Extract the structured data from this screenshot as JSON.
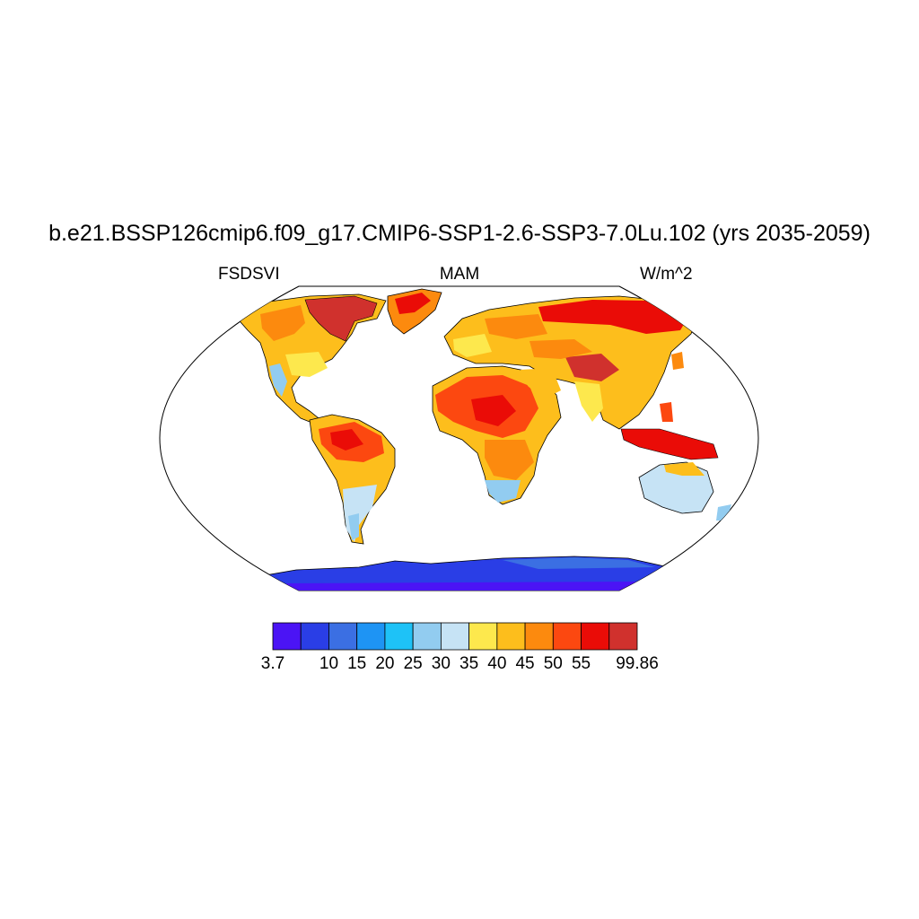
{
  "header": {
    "title": "b.e21.BSSP126cmip6.f09_g17.CMIP6-SSP1-2.6-SSP3-7.0Lu.102 (yrs 2035-2059)",
    "variable": "FSDSVI",
    "season": "MAM",
    "units": "W/m^2"
  },
  "map": {
    "projection": "robinson",
    "field_description": "shaded land values by level",
    "boundary_color": "#000000"
  },
  "colorbar": {
    "levels": [
      "3.7",
      "10",
      "15",
      "20",
      "25",
      "30",
      "35",
      "40",
      "45",
      "50",
      "55",
      "99.86"
    ],
    "colors": [
      "#4b14f5",
      "#2a3ee6",
      "#3b6fe3",
      "#1e94f4",
      "#1ec2f7",
      "#92ccf0",
      "#c6e3f5",
      "#fde84d",
      "#fdbe1c",
      "#fc8a0e",
      "#fc4810",
      "#ea0c07",
      "#d0312d"
    ]
  }
}
